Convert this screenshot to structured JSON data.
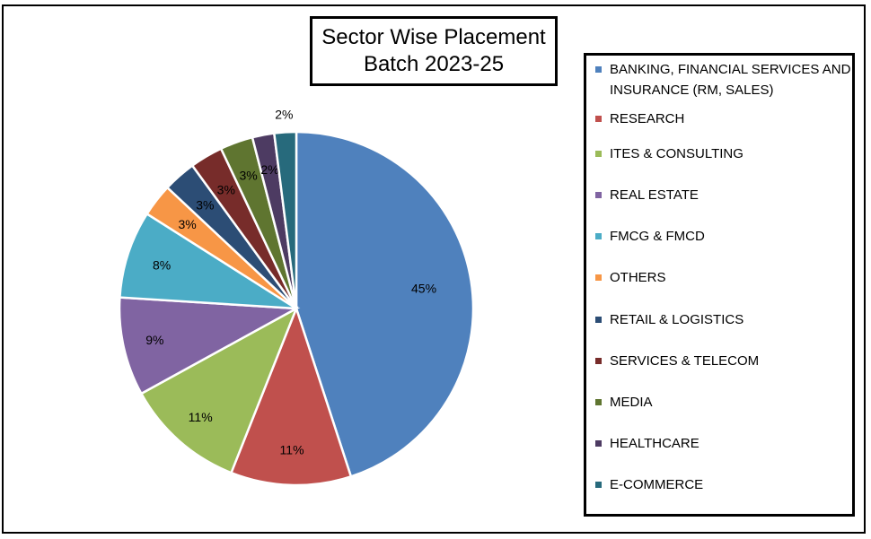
{
  "chart_data": {
    "type": "pie",
    "title_lines": [
      "Sector Wise Placement",
      "Batch 2023-25"
    ],
    "legend_placement": "right",
    "slices": [
      {
        "name": "BANKING, FINANCIAL SERVICES AND INSURANCE (RM, SALES)",
        "value": 45,
        "label": "45%",
        "color": "#4F81BD"
      },
      {
        "name": "RESEARCH",
        "value": 11,
        "label": "11%",
        "color": "#C0504D"
      },
      {
        "name": "ITES & CONSULTING",
        "value": 11,
        "label": "11%",
        "color": "#9BBB59"
      },
      {
        "name": "REAL ESTATE",
        "value": 9,
        "label": "9%",
        "color": "#8064A2"
      },
      {
        "name": "FMCG & FMCD",
        "value": 8,
        "label": "8%",
        "color": "#4BACC6"
      },
      {
        "name": "OTHERS",
        "value": 3,
        "label": "3%",
        "color": "#F79646"
      },
      {
        "name": "RETAIL & LOGISTICS",
        "value": 3,
        "label": "3%",
        "color": "#2C4D75"
      },
      {
        "name": "SERVICES & TELECOM",
        "value": 3,
        "label": "3%",
        "color": "#772C2A"
      },
      {
        "name": "MEDIA",
        "value": 3,
        "label": "3%",
        "color": "#5F7530"
      },
      {
        "name": "HEALTHCARE",
        "value": 2,
        "label": "2%",
        "color": "#4D3B62"
      },
      {
        "name": "E-COMMERCE",
        "value": 2,
        "label": "2%",
        "color": "#276A7C"
      }
    ]
  }
}
